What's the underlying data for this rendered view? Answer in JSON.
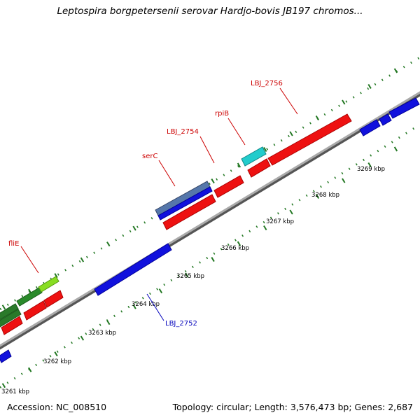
{
  "title": "Leptospira borgpetersenii serovar Hardjo-bovis JB197 chromos...",
  "footer": {
    "accession": "Accession: NC_008510",
    "summary": "Topology: circular; Length: 3,576,473 bp; Genes: 2,687"
  },
  "colors": {
    "backbone": "#888888",
    "forward_gene": "#ee1111",
    "reverse_gene": "#1111dd",
    "tick": "#227722",
    "label_red": "#cc0000",
    "label_blue": "#0000bb"
  },
  "ticks": [
    {
      "label": "3261 kbp"
    },
    {
      "label": "3262 kbp"
    },
    {
      "label": "3263 kbp"
    },
    {
      "label": "3264 kbp"
    },
    {
      "label": "3265 kbp"
    },
    {
      "label": "3266 kbp"
    },
    {
      "label": "3267 kbp"
    },
    {
      "label": "3268 kbp"
    },
    {
      "label": "3269 kbp"
    }
  ],
  "gene_labels": [
    {
      "name": "fliE",
      "color": "red"
    },
    {
      "name": "serC",
      "color": "red"
    },
    {
      "name": "LBJ_2754",
      "color": "red"
    },
    {
      "name": "rpiB",
      "color": "red"
    },
    {
      "name": "LBJ_2756",
      "color": "red"
    },
    {
      "name": "LBJ_2752",
      "color": "blue"
    }
  ]
}
